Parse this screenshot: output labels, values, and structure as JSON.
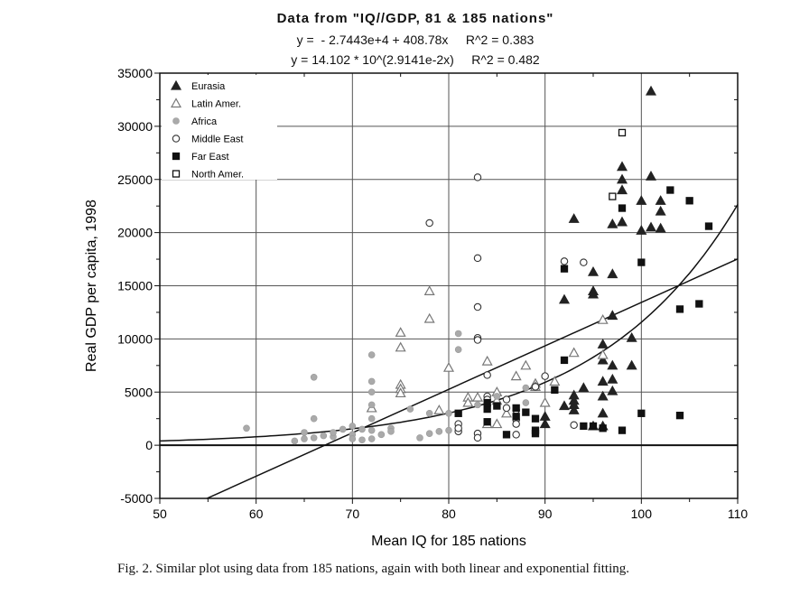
{
  "chart_data": {
    "type": "scatter",
    "title": "Data from \"IQ//GDP, 81 & 185 nations\"",
    "subtitle_lines": [
      "y =  - 2.7443e+4 + 408.78x     R^2 = 0.383",
      "y = 14.102 * 10^(2.9141e-2x)     R^2 = 0.482"
    ],
    "xlabel": "Mean IQ for 185 nations",
    "ylabel": "Real GDP per capita, 1998",
    "xlim": [
      50,
      110
    ],
    "ylim": [
      -5000,
      35000
    ],
    "xticks": [
      "50",
      "60",
      "70",
      "80",
      "90",
      "100",
      "110"
    ],
    "yticks": [
      "-5000",
      "0",
      "5000",
      "10000",
      "15000",
      "20000",
      "25000",
      "30000",
      "35000"
    ],
    "grid": true,
    "legend_position": "top-left",
    "fits": [
      {
        "name": "linear",
        "intercept": -27443,
        "slope": 408.78,
        "r2": 0.383
      },
      {
        "name": "exponential",
        "a": 14.102,
        "b": 0.029141,
        "r2": 0.482
      }
    ],
    "series": [
      {
        "name": "Eurasia",
        "marker": "filled-triangle",
        "color": "#222222",
        "points": [
          [
            101,
            33300
          ],
          [
            98,
            26200
          ],
          [
            98,
            25000
          ],
          [
            98,
            24000
          ],
          [
            101,
            25300
          ],
          [
            100,
            23000
          ],
          [
            102,
            23000
          ],
          [
            102,
            22000
          ],
          [
            93,
            21300
          ],
          [
            97,
            20800
          ],
          [
            98,
            21000
          ],
          [
            100,
            20200
          ],
          [
            101,
            20500
          ],
          [
            102,
            20400
          ],
          [
            92,
            13700
          ],
          [
            95,
            16300
          ],
          [
            97,
            16100
          ],
          [
            95,
            14500
          ],
          [
            95,
            14200
          ],
          [
            96,
            9500
          ],
          [
            97,
            12200
          ],
          [
            99,
            10100
          ],
          [
            96,
            8000
          ],
          [
            99,
            7500
          ],
          [
            97,
            6200
          ],
          [
            96,
            6000
          ],
          [
            97,
            5100
          ],
          [
            97,
            7500
          ],
          [
            94,
            5400
          ],
          [
            96,
            4600
          ],
          [
            93,
            4700
          ],
          [
            93,
            4200
          ],
          [
            93,
            3800
          ],
          [
            93,
            3300
          ],
          [
            90,
            2700
          ],
          [
            92,
            3700
          ],
          [
            95,
            1800
          ],
          [
            96,
            1800
          ],
          [
            96,
            3000
          ],
          [
            90,
            2000
          ]
        ]
      },
      {
        "name": "Latin Amer.",
        "marker": "open-triangle",
        "color": "#777777",
        "points": [
          [
            78,
            14500
          ],
          [
            78,
            11900
          ],
          [
            75,
            10600
          ],
          [
            75,
            9200
          ],
          [
            80,
            7300
          ],
          [
            75,
            5700
          ],
          [
            75,
            5300
          ],
          [
            75,
            4900
          ],
          [
            72,
            3500
          ],
          [
            79,
            3300
          ],
          [
            82,
            4500
          ],
          [
            84,
            7900
          ],
          [
            83,
            4500
          ],
          [
            85,
            5000
          ],
          [
            85,
            4200
          ],
          [
            87,
            6500
          ],
          [
            88,
            7500
          ],
          [
            89,
            5800
          ],
          [
            89,
            5500
          ],
          [
            90,
            4000
          ],
          [
            96,
            11800
          ],
          [
            93,
            8700
          ],
          [
            96,
            8500
          ],
          [
            91,
            6000
          ],
          [
            84,
            2000
          ],
          [
            85,
            2000
          ],
          [
            86,
            3000
          ],
          [
            82,
            4000
          ]
        ]
      },
      {
        "name": "Africa",
        "marker": "gray-dot",
        "color": "#aaaaaa",
        "points": [
          [
            59,
            1600
          ],
          [
            64,
            400
          ],
          [
            65,
            600
          ],
          [
            65,
            1200
          ],
          [
            66,
            2500
          ],
          [
            66,
            6400
          ],
          [
            66,
            700
          ],
          [
            67,
            900
          ],
          [
            68,
            800
          ],
          [
            68,
            1200
          ],
          [
            69,
            1500
          ],
          [
            70,
            1800
          ],
          [
            70,
            1000
          ],
          [
            70,
            600
          ],
          [
            71,
            1500
          ],
          [
            71,
            500
          ],
          [
            72,
            600
          ],
          [
            72,
            1400
          ],
          [
            72,
            5000
          ],
          [
            72,
            6000
          ],
          [
            72,
            8500
          ],
          [
            72,
            3800
          ],
          [
            72,
            2500
          ],
          [
            73,
            1000
          ],
          [
            74,
            1600
          ],
          [
            77,
            700
          ],
          [
            78,
            1100
          ],
          [
            79,
            1300
          ],
          [
            80,
            1400
          ],
          [
            81,
            10500
          ],
          [
            81,
            9000
          ],
          [
            80,
            3000
          ],
          [
            83,
            3800
          ],
          [
            84,
            3500
          ],
          [
            85,
            4600
          ],
          [
            88,
            4000
          ],
          [
            88,
            5400
          ],
          [
            78,
            3000
          ],
          [
            76,
            3400
          ],
          [
            74,
            1300
          ]
        ]
      },
      {
        "name": "Middle East",
        "marker": "open-circle",
        "color": "#333333",
        "points": [
          [
            78,
            20900
          ],
          [
            83,
            25200
          ],
          [
            83,
            17600
          ],
          [
            83,
            13000
          ],
          [
            83,
            10100
          ],
          [
            83,
            9900
          ],
          [
            84,
            6600
          ],
          [
            84,
            4600
          ],
          [
            84,
            4300
          ],
          [
            84,
            3800
          ],
          [
            83,
            1100
          ],
          [
            83,
            700
          ],
          [
            81,
            1300
          ],
          [
            81,
            2000
          ],
          [
            81,
            1600
          ],
          [
            87,
            3300
          ],
          [
            87,
            2400
          ],
          [
            87,
            2000
          ],
          [
            87,
            1000
          ],
          [
            86,
            4300
          ],
          [
            90,
            6500
          ],
          [
            92,
            17300
          ],
          [
            94,
            17200
          ],
          [
            93,
            1900
          ],
          [
            86,
            3500
          ],
          [
            89,
            5500
          ]
        ]
      },
      {
        "name": "Far East",
        "marker": "filled-square",
        "color": "#111111",
        "points": [
          [
            103,
            24000
          ],
          [
            105,
            23000
          ],
          [
            107,
            20600
          ],
          [
            98,
            22300
          ],
          [
            92,
            16600
          ],
          [
            100,
            17200
          ],
          [
            104,
            12800
          ],
          [
            106,
            13300
          ],
          [
            92,
            8000
          ],
          [
            91,
            5200
          ],
          [
            94,
            1800
          ],
          [
            96,
            1600
          ],
          [
            98,
            1400
          ],
          [
            100,
            3000
          ],
          [
            104,
            2800
          ],
          [
            89,
            2500
          ],
          [
            89,
            1400
          ],
          [
            89,
            1100
          ],
          [
            87,
            2700
          ],
          [
            87,
            3500
          ],
          [
            86,
            1000
          ],
          [
            84,
            2200
          ],
          [
            84,
            3400
          ],
          [
            84,
            4000
          ],
          [
            85,
            3700
          ],
          [
            88,
            3100
          ],
          [
            81,
            3000
          ],
          [
            95,
            1800
          ]
        ]
      },
      {
        "name": "North Amer.",
        "marker": "open-square",
        "color": "#111111",
        "points": [
          [
            98,
            29400
          ],
          [
            97,
            23400
          ]
        ]
      }
    ]
  },
  "caption": "Fig. 2. Similar plot using data from 185 nations, again with both linear and exponential fitting."
}
